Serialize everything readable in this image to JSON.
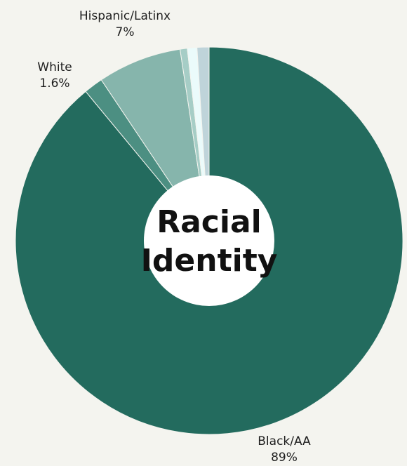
{
  "chart_data": {
    "type": "pie",
    "title": "Racial Identity",
    "slices": [
      {
        "name": "Black/AA",
        "value": 89,
        "display_value": "89%",
        "color": "#236b5e",
        "labeled": true
      },
      {
        "name": "White",
        "value": 1.6,
        "display_value": "1.6%",
        "color": "#4c8f82",
        "labeled": true
      },
      {
        "name": "Hispanic/Latinx",
        "value": 7,
        "display_value": "7%",
        "color": "#86b5ac",
        "labeled": true
      },
      {
        "value": 0.6,
        "color": "#a6cdc6",
        "labeled": false
      },
      {
        "value": 0.8,
        "color": "#ebfbfb",
        "labeled": false
      },
      {
        "value": 1.0,
        "color": "#bfd4da",
        "labeled": false
      }
    ],
    "legend": "none",
    "start_angle": "12 o'clock",
    "direction": "clockwise",
    "donut_center_color": "#ffffff"
  }
}
